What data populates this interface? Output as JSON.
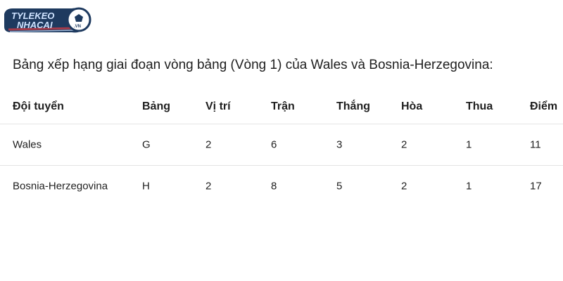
{
  "logo": {
    "line1": "TYLEKEO",
    "line2": "NHACAI",
    "badge": ".VN",
    "colors": {
      "primary": "#1e3a5f",
      "accent": "#a33a4a"
    }
  },
  "title": "Bảng xếp hạng giai đoạn vòng bảng (Vòng 1) của Wales và Bosnia-Herzegovina:",
  "table": {
    "headers": [
      "Đội tuyển",
      "Bảng",
      "Vị trí",
      "Trận",
      "Thắng",
      "Hòa",
      "Thua",
      "Điểm"
    ],
    "rows": [
      [
        "Wales",
        "G",
        "2",
        "6",
        "3",
        "2",
        "1",
        "11"
      ],
      [
        "Bosnia-Herzegovina",
        "H",
        "2",
        "8",
        "5",
        "2",
        "1",
        "17"
      ]
    ]
  }
}
